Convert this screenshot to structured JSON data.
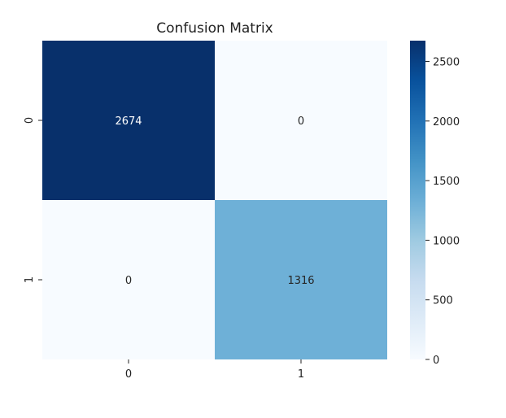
{
  "chart_data": {
    "type": "heatmap",
    "title": "Confusion Matrix",
    "xlabel": "",
    "ylabel": "",
    "x_categories": [
      "0",
      "1"
    ],
    "y_categories": [
      "0",
      "1"
    ],
    "values": [
      [
        2674,
        0
      ],
      [
        0,
        1316
      ]
    ],
    "cell_labels": [
      [
        "2674",
        "0"
      ],
      [
        "0",
        "1316"
      ]
    ],
    "colormap": "Blues",
    "colorbar": {
      "range": [
        0,
        2674
      ],
      "ticks": [
        0,
        500,
        1000,
        1500,
        2000,
        2500
      ],
      "tick_labels": [
        "0",
        "500",
        "1000",
        "1500",
        "2000",
        "2500"
      ]
    },
    "grid": false
  }
}
